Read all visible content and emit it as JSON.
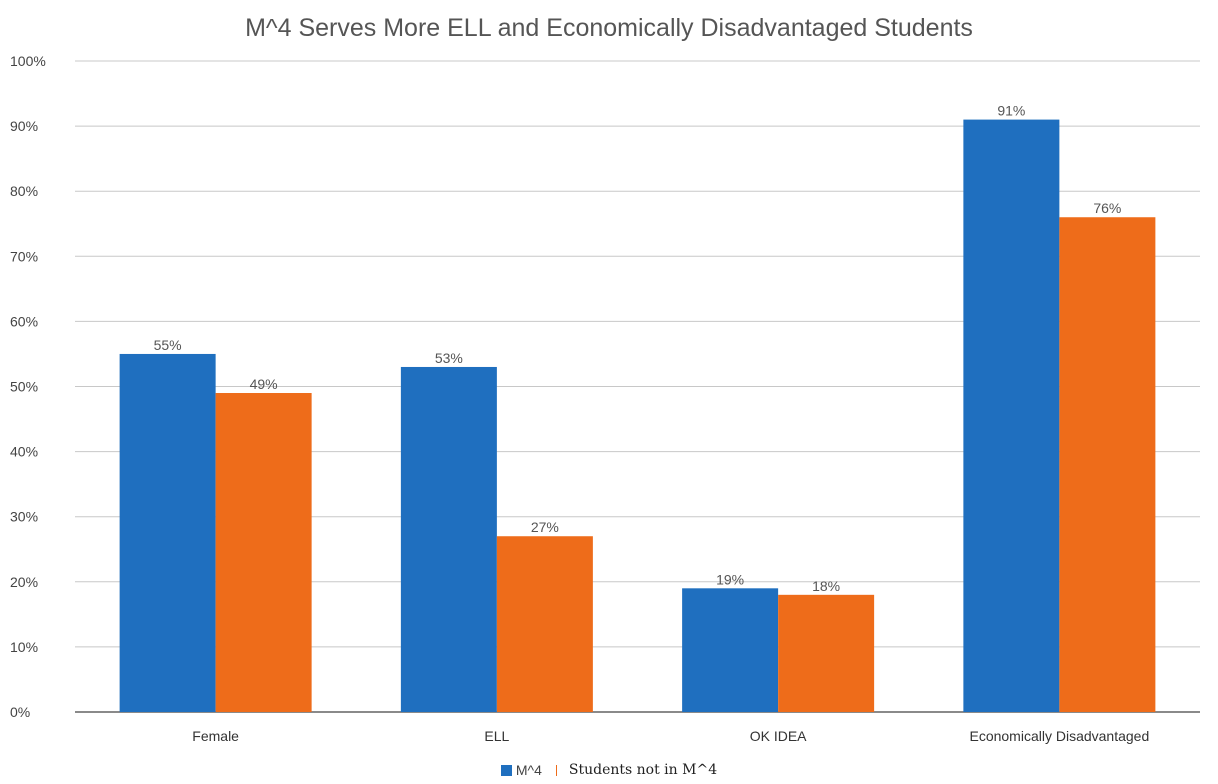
{
  "chart_data": {
    "type": "bar",
    "title": "M^4 Serves More ELL and Economically Disadvantaged Students",
    "categories": [
      "Female",
      "ELL",
      "OK IDEA",
      "Economically Disadvantaged"
    ],
    "series": [
      {
        "name": "M^4",
        "values": [
          55,
          53,
          19,
          91
        ],
        "labels": [
          "55%",
          "53%",
          "19%",
          "91%"
        ],
        "color": "#1f6fbf"
      },
      {
        "name": "Students not in M^4",
        "values": [
          49,
          27,
          18,
          76
        ],
        "labels": [
          "49%",
          "27%",
          "18%",
          "76%"
        ],
        "color": "#ee6c1a"
      }
    ],
    "ylim": [
      0,
      100
    ],
    "yticks": [
      "0%",
      "10%",
      "20%",
      "30%",
      "40%",
      "50%",
      "60%",
      "70%",
      "80%",
      "90%",
      "100%"
    ],
    "grid": true,
    "legend_position": "bottom-center",
    "xlabel": "",
    "ylabel": ""
  }
}
